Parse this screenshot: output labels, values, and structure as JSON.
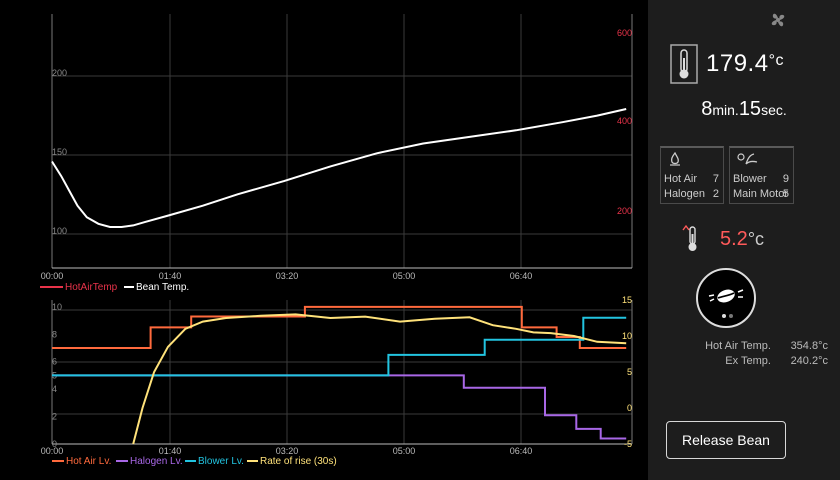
{
  "colors": {
    "bean_temp": "#ffffff",
    "hot_air_temp": "#e8334a",
    "hot_air_lv": "#ff6a3d",
    "halogen_lv": "#a867e6",
    "blower_lv": "#22c4e0",
    "rate_of_rise": "#ffe27a",
    "right_axis_top": "#e8334a",
    "right_axis_bottom": "#ffe27a",
    "rise_value": "#ff5a5a"
  },
  "top_chart": {
    "left_ticks": [
      "200",
      "150",
      "100"
    ],
    "right_ticks": [
      "600",
      "400",
      "200"
    ],
    "x_ticks": [
      "00:00",
      "01:40",
      "03:20",
      "05:00",
      "06:40"
    ],
    "legend": [
      "HotAirTemp",
      "Bean Temp."
    ]
  },
  "bottom_chart": {
    "left_ticks": [
      "10",
      "8",
      "6",
      "5",
      "4",
      "2",
      "0"
    ],
    "right_ticks": [
      "15",
      "10",
      "5",
      "0",
      "-5"
    ],
    "x_ticks": [
      "00:00",
      "01:40",
      "03:20",
      "05:00",
      "06:40"
    ],
    "legend": [
      "Hot Air Lv.",
      "Halogen Lv.",
      "Blower Lv.",
      "Rate of rise (30s)"
    ]
  },
  "chart_data": [
    {
      "type": "line",
      "x_unit": "seconds",
      "xlim": [
        0,
        500
      ],
      "ylim": [
        80,
        235
      ],
      "series": [
        {
          "name": "Bean Temp.",
          "x": [
            0,
            8,
            15,
            22,
            30,
            40,
            50,
            60,
            70,
            80,
            100,
            130,
            160,
            200,
            240,
            280,
            320,
            360,
            400,
            440,
            470,
            495
          ],
          "y": [
            145,
            136,
            127,
            118,
            111,
            107,
            105,
            105,
            106,
            108,
            112,
            118,
            125,
            133,
            142,
            150,
            156,
            160,
            164,
            169,
            173,
            177
          ]
        }
      ]
    },
    {
      "type": "line",
      "x_unit": "seconds",
      "xlim": [
        0,
        500
      ],
      "ylim": [
        0,
        10.5
      ],
      "y2lim": [
        -5,
        15
      ],
      "series": [
        {
          "name": "Hot Air Lv.",
          "x": [
            0,
            85,
            85,
            120,
            120,
            218,
            218,
            405,
            405,
            435,
            435,
            455,
            455,
            495
          ],
          "y": [
            7,
            7,
            8.5,
            8.5,
            9.3,
            9.3,
            10,
            10,
            8.5,
            8.5,
            7.8,
            7.8,
            7,
            7
          ]
        },
        {
          "name": "Halogen Lv.",
          "x": [
            0,
            355,
            355,
            425,
            425,
            452,
            452,
            473,
            473,
            495
          ],
          "y": [
            5,
            5,
            4.1,
            4.1,
            2.1,
            2.1,
            1.1,
            1.1,
            0.4,
            0.4
          ]
        },
        {
          "name": "Blower Lv.",
          "x": [
            0,
            290,
            290,
            373,
            373,
            458,
            458,
            495
          ],
          "y": [
            5,
            5,
            6.5,
            6.5,
            7.6,
            7.6,
            9.2,
            9.2
          ]
        },
        {
          "name": "Rate of rise (30s)",
          "axis": "right",
          "x": [
            70,
            78,
            88,
            100,
            115,
            130,
            150,
            180,
            210,
            240,
            270,
            300,
            330,
            360,
            380,
            400,
            415,
            430,
            450,
            470,
            495
          ],
          "y": [
            -5,
            0,
            5,
            8.5,
            11,
            12,
            12.5,
            12.8,
            13,
            12.5,
            12.7,
            12,
            12.4,
            12.6,
            11.5,
            11,
            10.5,
            10.4,
            10,
            9.2,
            9
          ]
        }
      ]
    }
  ],
  "right_panel": {
    "fan_icon": "fan-icon",
    "bean_temp_value": "179.4",
    "bean_temp_unit": "°c",
    "time_min": "8",
    "time_min_label": "min.",
    "time_sec": "15",
    "time_sec_label": "sec.",
    "heater_box": {
      "icon": "flame-icon",
      "rows": [
        {
          "label": "Hot Air",
          "value": "7"
        },
        {
          "label": "Halogen",
          "value": "2"
        }
      ]
    },
    "fan_box": {
      "icon": "blower-icon",
      "rows": [
        {
          "label": "Blower",
          "value": "9"
        },
        {
          "label": "Main Motor",
          "value": "5"
        }
      ]
    },
    "rise_value": "5.2",
    "rise_unit": "°c",
    "bean_icon": "coffee-bean-icon",
    "hot_air_temp_label": "Hot Air Temp.",
    "hot_air_temp_value": "354.8°c",
    "ex_temp_label": "Ex Temp.",
    "ex_temp_value": "240.2°c",
    "release_button": "Release Bean"
  }
}
